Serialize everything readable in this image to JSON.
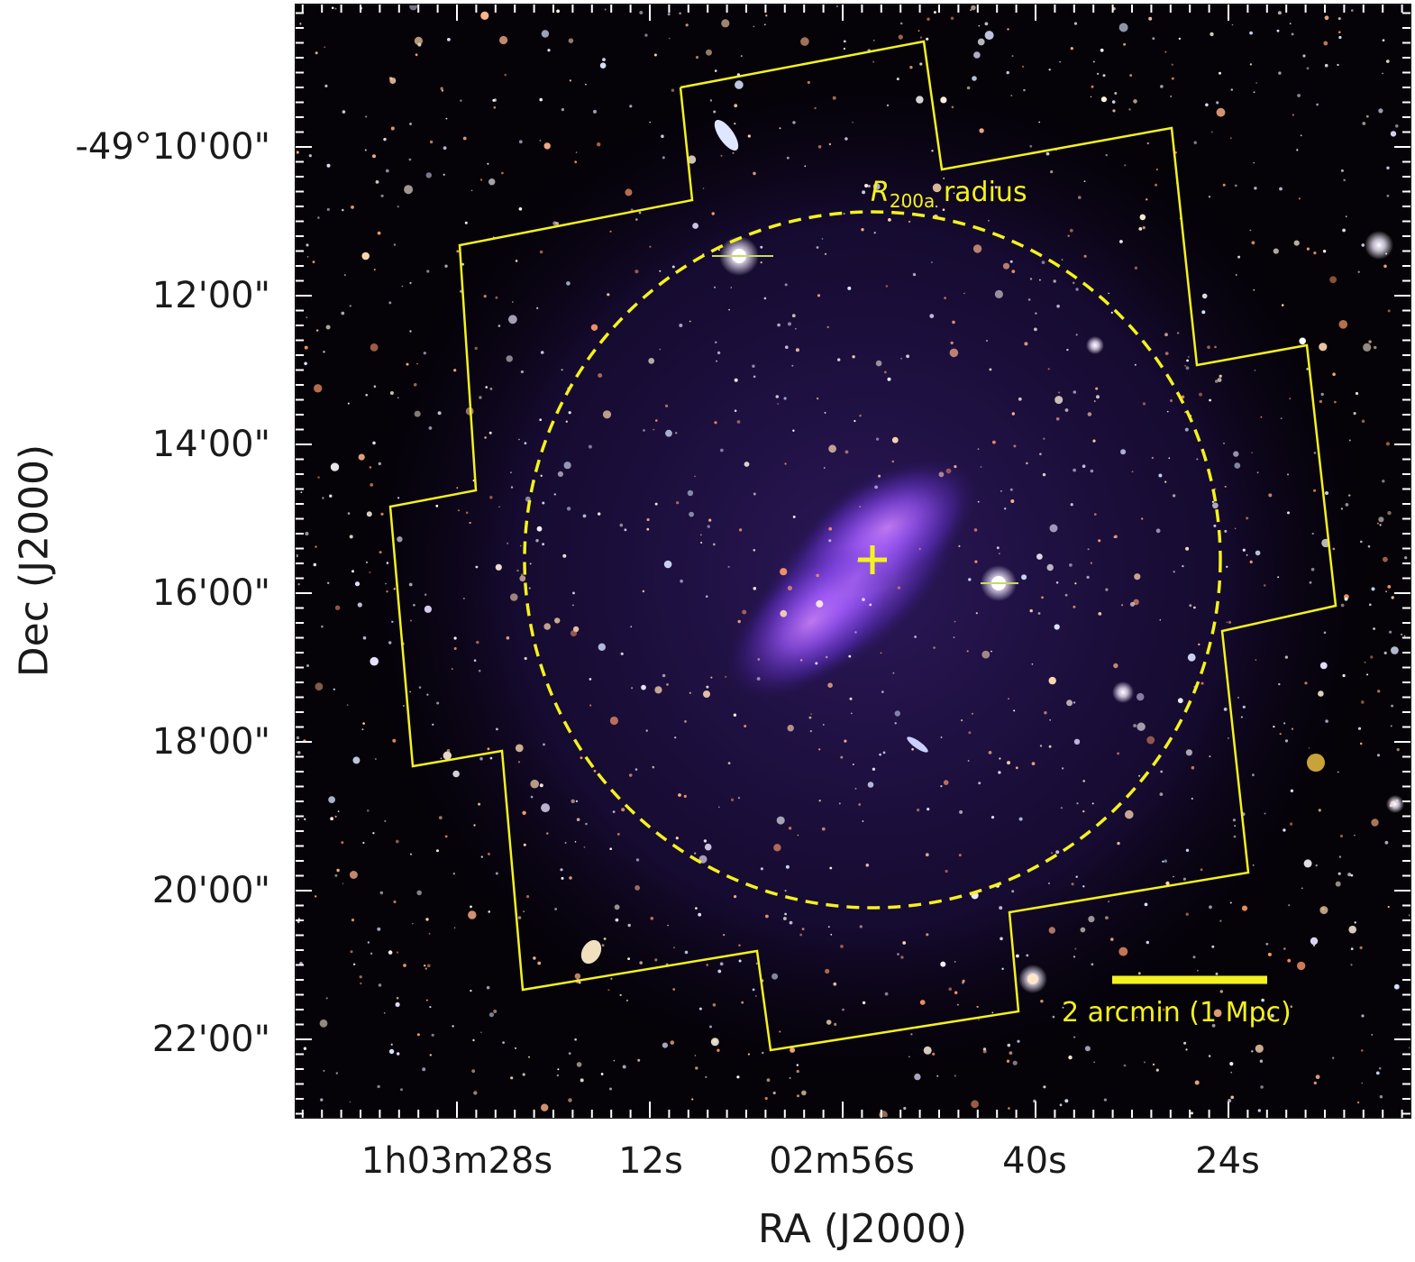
{
  "figure": {
    "y_axis": {
      "title": "Dec (J2000)",
      "tick_labels": [
        "-49°10'00\"",
        "12'00\"",
        "14'00\"",
        "16'00\"",
        "18'00\"",
        "20'00\"",
        "22'00\""
      ]
    },
    "x_axis": {
      "title": "RA (J2000)",
      "tick_labels": [
        "1h03m28s",
        "12s",
        "02m56s",
        "40s",
        "24s"
      ]
    },
    "annotations": {
      "r200_symbol": "R",
      "r200_subscript": "200a",
      "r200_suffix": " radius",
      "scale_bar_label": "2 arcmin (1 Mpc)",
      "color": "#f4f21e"
    },
    "image_content": {
      "background": "optical deep field, black with stars and galaxies",
      "overlay": "purple diffuse X-ray emission, elongated NW–SE",
      "overlay_color": "#8a3cff",
      "footprint_outline_color": "#f4f21e"
    }
  }
}
